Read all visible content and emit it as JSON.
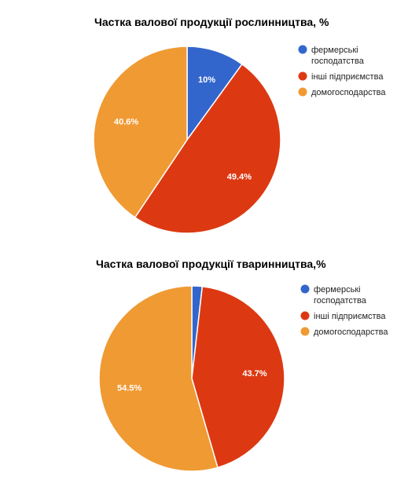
{
  "chart_data": [
    {
      "type": "pie",
      "title": "Частка валової продукції рослинництва, %",
      "slices": [
        {
          "label": "фермерські господатства",
          "value": 10,
          "display": "10%",
          "color": "#3366cc"
        },
        {
          "label": "інші підприємства",
          "value": 49.4,
          "display": "49.4%",
          "color": "#dc3912"
        },
        {
          "label": "домогосподарства",
          "value": 40.6,
          "display": "40.6%",
          "color": "#f09a33"
        }
      ],
      "legend": "right"
    },
    {
      "type": "pie",
      "title": "Частка валової продукції тваринництва,%",
      "slices": [
        {
          "label": "фермерські господатства",
          "value": 1.8,
          "display": "",
          "color": "#3366cc"
        },
        {
          "label": "інші підприємства",
          "value": 43.7,
          "display": "43.7%",
          "color": "#dc3912"
        },
        {
          "label": "домогосподарства",
          "value": 54.5,
          "display": "54.5%",
          "color": "#f09a33"
        }
      ],
      "legend": "right"
    }
  ]
}
